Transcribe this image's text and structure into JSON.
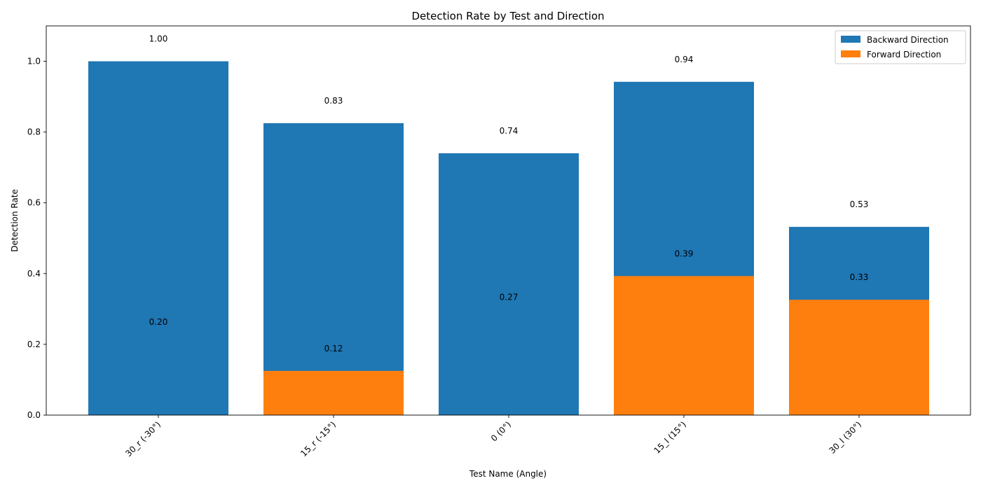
{
  "chart_data": {
    "type": "bar",
    "title": "Detection Rate by Test and Direction",
    "xlabel": "Test Name (Angle)",
    "ylabel": "Detection Rate",
    "categories": [
      "30_r (-30°)",
      "15_r (-15°)",
      "0 (0°)",
      "15_l (15°)",
      "30_l (30°)"
    ],
    "series": [
      {
        "name": "Backward Direction",
        "color": "#1f77b4",
        "values": [
          1.0,
          0.825,
          0.74,
          0.942,
          0.532
        ],
        "labels": [
          "1.00",
          "0.83",
          "0.74",
          "0.94",
          "0.53"
        ]
      },
      {
        "name": "Forward Direction",
        "color": "#ff7f0e",
        "values": [
          0.2,
          0.125,
          0.27,
          0.393,
          0.326
        ],
        "labels": [
          "0.20",
          "0.12",
          "0.27",
          "0.39",
          "0.33"
        ]
      }
    ],
    "ylim": [
      0,
      1.1
    ],
    "yticks": [
      0.0,
      0.2,
      0.4,
      0.6,
      0.8,
      1.0
    ],
    "ytick_labels": [
      "0.0",
      "0.2",
      "0.4",
      "0.6",
      "0.8",
      "1.0"
    ],
    "overlay": "forward drawn first, backward drawn on top",
    "grid": false,
    "legend_position": "top-right",
    "xtick_rotation_deg": 45
  }
}
